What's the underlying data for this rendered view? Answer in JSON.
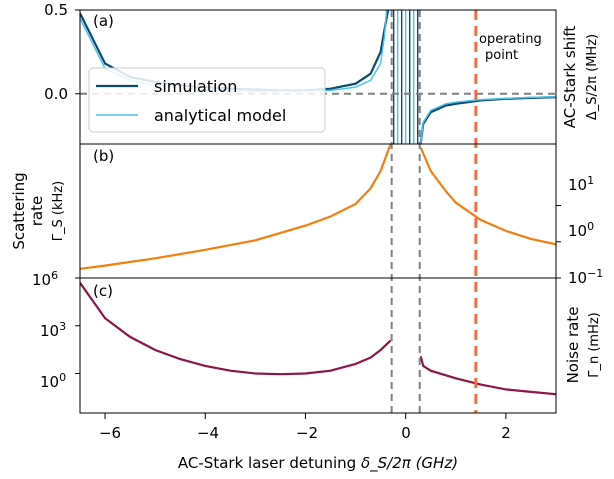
{
  "chart_data": [
    {
      "panel": "(a)",
      "type": "line",
      "ylabel": "AC-Stark shift",
      "ylabel_sub": "Δ_S/2π (MHz)",
      "xlim": [
        -6.5,
        3.0
      ],
      "ylim": [
        -0.3,
        0.5
      ],
      "yticks": [
        "0.5",
        "0.0"
      ],
      "legend": [
        "simulation",
        "analytical model"
      ],
      "legend_placement": "center-left",
      "annotation": [
        "operating",
        "point"
      ],
      "series": [
        {
          "name": "simulation",
          "color": "#0a4a6e",
          "x": [
            -6.5,
            -6.0,
            -5.5,
            -5.0,
            -4.5,
            -4.0,
            -3.5,
            -3.0,
            -2.5,
            -2.0,
            -1.5,
            -1.0,
            -0.7,
            -0.5,
            -0.4,
            -0.35,
            0.3,
            0.35,
            0.5,
            0.8,
            1.0,
            1.5,
            2.0,
            2.5,
            3.0
          ],
          "y": [
            0.48,
            0.18,
            0.1,
            0.07,
            0.05,
            0.04,
            0.03,
            0.025,
            0.02,
            0.02,
            0.03,
            0.06,
            0.12,
            0.25,
            0.42,
            0.5,
            -0.3,
            -0.18,
            -0.11,
            -0.07,
            -0.06,
            -0.04,
            -0.03,
            -0.025,
            -0.02
          ]
        },
        {
          "name": "analytical model",
          "color": "#4ec3ea",
          "x": [
            -6.5,
            -6.0,
            -5.5,
            -5.0,
            -4.5,
            -4.0,
            -3.5,
            -3.0,
            -2.5,
            -2.0,
            -1.5,
            -1.0,
            -0.7,
            -0.5,
            -0.42,
            -0.38,
            0.3,
            0.35,
            0.5,
            0.8,
            1.0,
            1.5,
            2.0,
            2.5,
            3.0
          ],
          "y": [
            0.45,
            0.15,
            0.08,
            0.05,
            0.035,
            0.025,
            0.02,
            0.015,
            0.015,
            0.015,
            0.02,
            0.04,
            0.08,
            0.18,
            0.35,
            0.5,
            -0.3,
            -0.17,
            -0.1,
            -0.06,
            -0.05,
            -0.035,
            -0.028,
            -0.022,
            -0.018
          ]
        }
      ]
    },
    {
      "panel": "(b)",
      "type": "line",
      "ylabel": "Scattering rate",
      "ylabel_sub": "Γ_S (kHz)",
      "yscale": "log",
      "xlim": [
        -6.5,
        3.0
      ],
      "ylim": [
        0.1,
        500
      ],
      "yticks": [
        "10^-1",
        "10^0",
        "10^1"
      ],
      "series": [
        {
          "name": "",
          "color": "#f07f0e",
          "x": [
            -6.5,
            -6.0,
            -5.0,
            -4.0,
            -3.0,
            -2.0,
            -1.5,
            -1.0,
            -0.7,
            -0.5,
            -0.3,
            0.3,
            0.5,
            0.8,
            1.0,
            1.5,
            2.0,
            2.5,
            3.0
          ],
          "y": [
            0.18,
            0.22,
            0.35,
            0.6,
            1.1,
            2.8,
            5.0,
            11.0,
            30.0,
            90.0,
            500.0,
            400.0,
            90.0,
            25.0,
            12.0,
            4.0,
            2.0,
            1.2,
            0.85
          ]
        }
      ]
    },
    {
      "panel": "(c)",
      "type": "line",
      "ylabel": "Noise rate",
      "ylabel_sub": "Γ_n (mHz)",
      "yscale": "log",
      "xlim": [
        -6.5,
        3.0
      ],
      "ylim": [
        0.0033,
        1000000
      ],
      "yticks": [
        "10^0",
        "10^3",
        "10^6"
      ],
      "series": [
        {
          "name": "",
          "color": "#8b1648",
          "x": [
            -6.5,
            -6.0,
            -5.5,
            -5.0,
            -4.5,
            -4.0,
            -3.5,
            -3.0,
            -2.5,
            -2.0,
            -1.5,
            -1.0,
            -0.7,
            -0.5,
            -0.3,
            0.3,
            0.35,
            0.5,
            1.0,
            1.5,
            2.0,
            2.5,
            3.0
          ],
          "y": [
            500000,
            3000,
            200,
            30,
            8,
            3,
            1.5,
            1.0,
            0.9,
            1.0,
            1.5,
            4,
            10,
            30,
            120,
            12,
            3,
            1.5,
            0.5,
            0.2,
            0.1,
            0.07,
            0.05
          ]
        }
      ]
    }
  ],
  "shared": {
    "xlabel": "AC-Stark laser detuning",
    "xlabel_sym": "δ_S/2π (GHz)",
    "xticks": [
      "−6",
      "−4",
      "−2",
      "0",
      "2"
    ],
    "guides": {
      "gray_x": [
        -0.28,
        0.28
      ],
      "operating_x": 1.4,
      "gray_color": "#808080",
      "operating_color": "#ef6c44",
      "zero_line_color": "#808080"
    }
  }
}
